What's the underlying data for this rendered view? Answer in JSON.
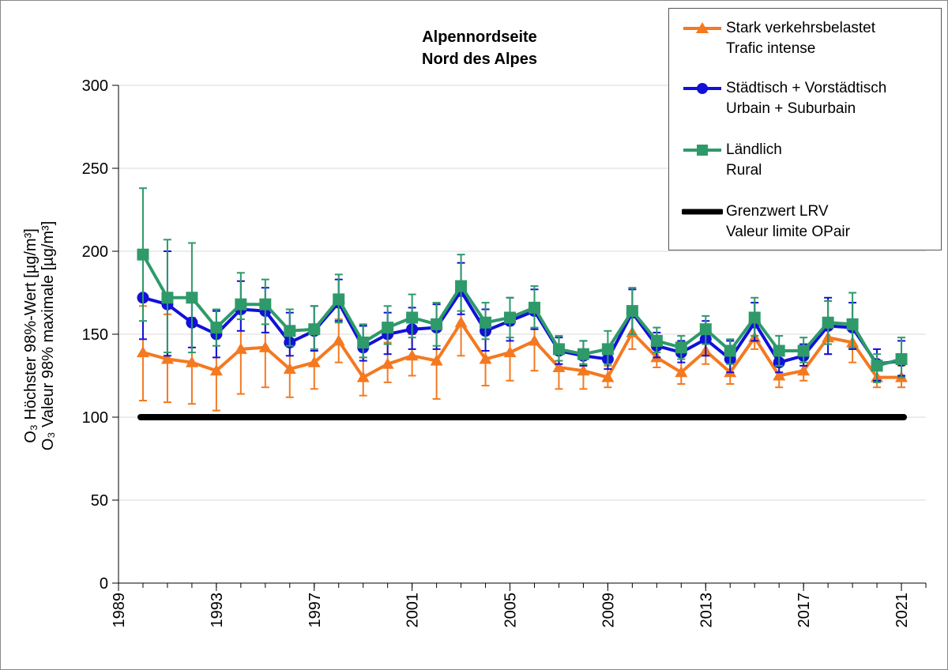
{
  "chart_data": {
    "type": "line",
    "title": [
      "Alpennordseite",
      "Nord des Alpes"
    ],
    "ylabel_line1": "O₃ Höchster 98%-Wert [µg/m³]",
    "ylabel_line2": "O₃ Valeur 98% maximale [µg/m³]",
    "xlabel": "",
    "xlim": [
      1989,
      2022
    ],
    "ylim": [
      0,
      300
    ],
    "x_ticks": [
      1989,
      1993,
      1997,
      2001,
      2005,
      2009,
      2013,
      2017,
      2021
    ],
    "y_ticks": [
      0,
      50,
      100,
      150,
      200,
      250,
      300
    ],
    "grid": "horizontal",
    "legend_position": "top-right",
    "x": [
      1990,
      1991,
      1992,
      1993,
      1994,
      1995,
      1996,
      1997,
      1998,
      1999,
      2000,
      2001,
      2002,
      2003,
      2004,
      2005,
      2006,
      2007,
      2008,
      2009,
      2010,
      2011,
      2012,
      2013,
      2014,
      2015,
      2016,
      2017,
      2018,
      2019,
      2020,
      2021
    ],
    "series": [
      {
        "name": "Stark verkehrsbelastet",
        "name2": "Trafic intense",
        "color": "#f47920",
        "marker": "triangle",
        "values": [
          139,
          135,
          133,
          128,
          141,
          142,
          129,
          133,
          146,
          124,
          132,
          137,
          134,
          157,
          135,
          139,
          146,
          130,
          128,
          124,
          151,
          136,
          127,
          140,
          127,
          148,
          125,
          128,
          148,
          145,
          124,
          124
        ],
        "err_low": [
          110,
          109,
          108,
          104,
          114,
          118,
          112,
          117,
          133,
          113,
          121,
          125,
          111,
          137,
          119,
          122,
          128,
          117,
          117,
          118,
          141,
          130,
          120,
          132,
          120,
          141,
          118,
          122,
          138,
          133,
          118,
          118
        ],
        "err_high": [
          167,
          162,
          160,
          157,
          170,
          168,
          147,
          150,
          159,
          136,
          145,
          150,
          158,
          178,
          153,
          157,
          165,
          143,
          139,
          131,
          163,
          142,
          135,
          150,
          133,
          157,
          133,
          135,
          159,
          157,
          131,
          131
        ]
      },
      {
        "name": "Städtisch + Vorstädtisch",
        "name2": "Urbain + Suburbain",
        "color": "#1111d9",
        "marker": "circle",
        "values": [
          172,
          168,
          157,
          150,
          165,
          164,
          145,
          152,
          169,
          142,
          150,
          153,
          154,
          176,
          152,
          158,
          164,
          140,
          137,
          135,
          163,
          143,
          139,
          147,
          135,
          157,
          133,
          137,
          155,
          154,
          132,
          134
        ],
        "err_low": [
          147,
          137,
          142,
          136,
          152,
          151,
          137,
          140,
          158,
          134,
          138,
          141,
          141,
          162,
          140,
          146,
          153,
          132,
          131,
          129,
          150,
          136,
          133,
          137,
          127,
          146,
          127,
          131,
          138,
          141,
          122,
          125
        ],
        "err_high": [
          198,
          200,
          172,
          164,
          182,
          178,
          163,
          167,
          183,
          155,
          163,
          166,
          168,
          193,
          165,
          172,
          177,
          148,
          146,
          142,
          177,
          151,
          146,
          158,
          146,
          169,
          140,
          144,
          172,
          169,
          141,
          146
        ]
      },
      {
        "name": "Ländlich",
        "name2": "Rural",
        "color": "#2e9a6a",
        "marker": "square",
        "values": [
          198,
          172,
          172,
          154,
          168,
          168,
          152,
          153,
          171,
          145,
          154,
          160,
          156,
          179,
          157,
          160,
          166,
          141,
          138,
          141,
          164,
          146,
          142,
          153,
          140,
          160,
          140,
          140,
          157,
          156,
          131,
          135
        ],
        "err_low": [
          158,
          139,
          139,
          143,
          159,
          156,
          143,
          141,
          157,
          136,
          144,
          148,
          143,
          164,
          147,
          148,
          154,
          134,
          132,
          132,
          150,
          139,
          135,
          144,
          132,
          149,
          131,
          133,
          144,
          142,
          121,
          124
        ],
        "err_high": [
          238,
          207,
          205,
          165,
          187,
          183,
          165,
          167,
          186,
          156,
          167,
          174,
          169,
          198,
          169,
          172,
          179,
          149,
          146,
          152,
          178,
          154,
          149,
          161,
          147,
          172,
          149,
          148,
          170,
          175,
          138,
          148
        ]
      },
      {
        "name": "Grenzwert LRV",
        "name2": "Valeur limite OPair",
        "color": "#000000",
        "marker": "none",
        "values": [
          100,
          100,
          100,
          100,
          100,
          100,
          100,
          100,
          100,
          100,
          100,
          100,
          100,
          100,
          100,
          100,
          100,
          100,
          100,
          100,
          100,
          100,
          100,
          100,
          100,
          100,
          100,
          100,
          100,
          100,
          100,
          100
        ]
      }
    ]
  }
}
